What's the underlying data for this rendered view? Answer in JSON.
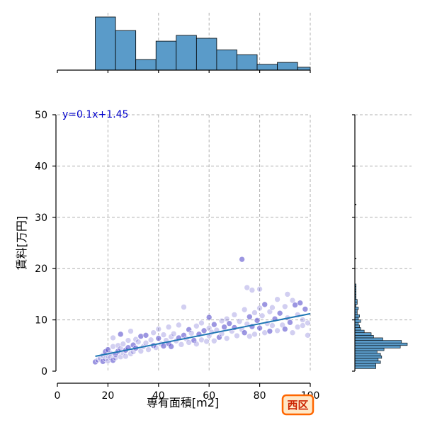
{
  "chart_data": {
    "type": "scatter",
    "xlabel": "専有面積[m2]",
    "ylabel": "賃料[万円]",
    "xlim": [
      0,
      100
    ],
    "ylim": [
      0,
      50
    ],
    "xticks": [
      0,
      20,
      40,
      60,
      80,
      100
    ],
    "yticks": [
      0,
      10,
      20,
      30,
      40,
      50
    ],
    "grid": true,
    "regression": {
      "equation": "y=0.1x+1.45",
      "x": [
        15,
        100
      ],
      "y": [
        2.9,
        11.2
      ]
    },
    "marginal_x_histogram": {
      "bin_edges": [
        15,
        23,
        31,
        39,
        47,
        55,
        63,
        71,
        79,
        87,
        95,
        100
      ],
      "counts": [
        55,
        41,
        11,
        30,
        36,
        33,
        21,
        16,
        6,
        8,
        3
      ]
    },
    "marginal_y_histogram": {
      "bin_edges": [
        0.5,
        1.0,
        1.5,
        2.0,
        2.5,
        3.0,
        3.5,
        4.0,
        4.5,
        5.0,
        5.5,
        6.0,
        6.5,
        7.0,
        7.5,
        8.0,
        8.5,
        9.0,
        9.5,
        10.0,
        10.5,
        11.0,
        11.5,
        12.0,
        12.5,
        13.0,
        13.5,
        14.0,
        14.5,
        15.0,
        15.5,
        16.0,
        16.5,
        17.0
      ],
      "counts": [
        18,
        18,
        22,
        20,
        23,
        22,
        19,
        25,
        39,
        45,
        40,
        24,
        16,
        14,
        8,
        5,
        4,
        3,
        5,
        3,
        4,
        2,
        2,
        3,
        1,
        2,
        2,
        1,
        1,
        1,
        1,
        1,
        1
      ]
    },
    "marginal_y_outliers": [
      22,
      32.5
    ],
    "points": [
      [
        15,
        1.8
      ],
      [
        16,
        2.2
      ],
      [
        17,
        2.5
      ],
      [
        18,
        1.9
      ],
      [
        18,
        3.1
      ],
      [
        19,
        2.4
      ],
      [
        19,
        3.8
      ],
      [
        20,
        2.0
      ],
      [
        20,
        3.0
      ],
      [
        20,
        4.2
      ],
      [
        21,
        2.7
      ],
      [
        21,
        3.5
      ],
      [
        22,
        2.1
      ],
      [
        22,
        4.8
      ],
      [
        22,
        6.5
      ],
      [
        23,
        3.3
      ],
      [
        23,
        2.6
      ],
      [
        24,
        5.0
      ],
      [
        24,
        3.9
      ],
      [
        25,
        2.8
      ],
      [
        25,
        4.4
      ],
      [
        25,
        7.2
      ],
      [
        26,
        3.6
      ],
      [
        26,
        5.3
      ],
      [
        27,
        4.1
      ],
      [
        27,
        2.9
      ],
      [
        28,
        6.0
      ],
      [
        28,
        4.6
      ],
      [
        29,
        3.4
      ],
      [
        29,
        7.8
      ],
      [
        30,
        5.1
      ],
      [
        30,
        3.8
      ],
      [
        31,
        6.2
      ],
      [
        31,
        4.5
      ],
      [
        32,
        5.7
      ],
      [
        33,
        3.9
      ],
      [
        33,
        6.8
      ],
      [
        34,
        4.8
      ],
      [
        35,
        5.5
      ],
      [
        35,
        7.0
      ],
      [
        36,
        4.2
      ],
      [
        37,
        6.1
      ],
      [
        38,
        5.0
      ],
      [
        38,
        7.5
      ],
      [
        39,
        4.6
      ],
      [
        40,
        6.4
      ],
      [
        40,
        8.2
      ],
      [
        41,
        5.3
      ],
      [
        42,
        4.9
      ],
      [
        42,
        7.1
      ],
      [
        43,
        6.0
      ],
      [
        44,
        5.4
      ],
      [
        44,
        8.6
      ],
      [
        45,
        6.7
      ],
      [
        45,
        4.8
      ],
      [
        46,
        7.3
      ],
      [
        47,
        5.9
      ],
      [
        48,
        6.5
      ],
      [
        48,
        9.0
      ],
      [
        49,
        5.2
      ],
      [
        50,
        7.0
      ],
      [
        50,
        12.5
      ],
      [
        51,
        6.3
      ],
      [
        52,
        8.1
      ],
      [
        52,
        5.6
      ],
      [
        53,
        7.4
      ],
      [
        54,
        6.0
      ],
      [
        55,
        8.8
      ],
      [
        55,
        5.3
      ],
      [
        56,
        7.2
      ],
      [
        57,
        9.4
      ],
      [
        57,
        6.1
      ],
      [
        58,
        7.9
      ],
      [
        59,
        5.8
      ],
      [
        60,
        8.4
      ],
      [
        60,
        10.5
      ],
      [
        60,
        6.9
      ],
      [
        61,
        7.6
      ],
      [
        62,
        9.1
      ],
      [
        62,
        5.9
      ],
      [
        63,
        8.0
      ],
      [
        64,
        6.6
      ],
      [
        65,
        9.8
      ],
      [
        65,
        7.3
      ],
      [
        66,
        8.6
      ],
      [
        67,
        10.2
      ],
      [
        67,
        6.4
      ],
      [
        68,
        9.3
      ],
      [
        69,
        7.8
      ],
      [
        70,
        11.0
      ],
      [
        70,
        8.5
      ],
      [
        71,
        6.9
      ],
      [
        72,
        9.7
      ],
      [
        73,
        21.8
      ],
      [
        73,
        8.1
      ],
      [
        74,
        12.0
      ],
      [
        74,
        7.5
      ],
      [
        75,
        16.3
      ],
      [
        75,
        9.2
      ],
      [
        76,
        10.6
      ],
      [
        76,
        6.8
      ],
      [
        77,
        15.8
      ],
      [
        77,
        8.7
      ],
      [
        78,
        11.4
      ],
      [
        78,
        7.2
      ],
      [
        79,
        9.9
      ],
      [
        80,
        16.0
      ],
      [
        80,
        12.3
      ],
      [
        80,
        8.4
      ],
      [
        81,
        10.8
      ],
      [
        82,
        7.5
      ],
      [
        82,
        13.0
      ],
      [
        83,
        9.3
      ],
      [
        84,
        11.6
      ],
      [
        84,
        7.8
      ],
      [
        85,
        12.4
      ],
      [
        85,
        8.9
      ],
      [
        86,
        10.2
      ],
      [
        87,
        14.0
      ],
      [
        87,
        7.9
      ],
      [
        88,
        11.3
      ],
      [
        89,
        9.0
      ],
      [
        90,
        12.6
      ],
      [
        90,
        8.2
      ],
      [
        91,
        15.0
      ],
      [
        91,
        10.4
      ],
      [
        92,
        9.5
      ],
      [
        93,
        13.8
      ],
      [
        93,
        7.5
      ],
      [
        94,
        12.9
      ],
      [
        95,
        11.0
      ],
      [
        95,
        8.6
      ],
      [
        96,
        13.3
      ],
      [
        97,
        10.0
      ],
      [
        97,
        8.9
      ],
      [
        98,
        12.1
      ],
      [
        99,
        9.4
      ],
      [
        99,
        7.0
      ]
    ]
  },
  "badge": {
    "label": "西区",
    "fill": "#ffe8c8",
    "stroke": "#ff6600"
  },
  "colors": {
    "histogram_fill": "#5a9bc9",
    "scatter": "#4b3fc8",
    "regression_line": "#1f77b4"
  }
}
